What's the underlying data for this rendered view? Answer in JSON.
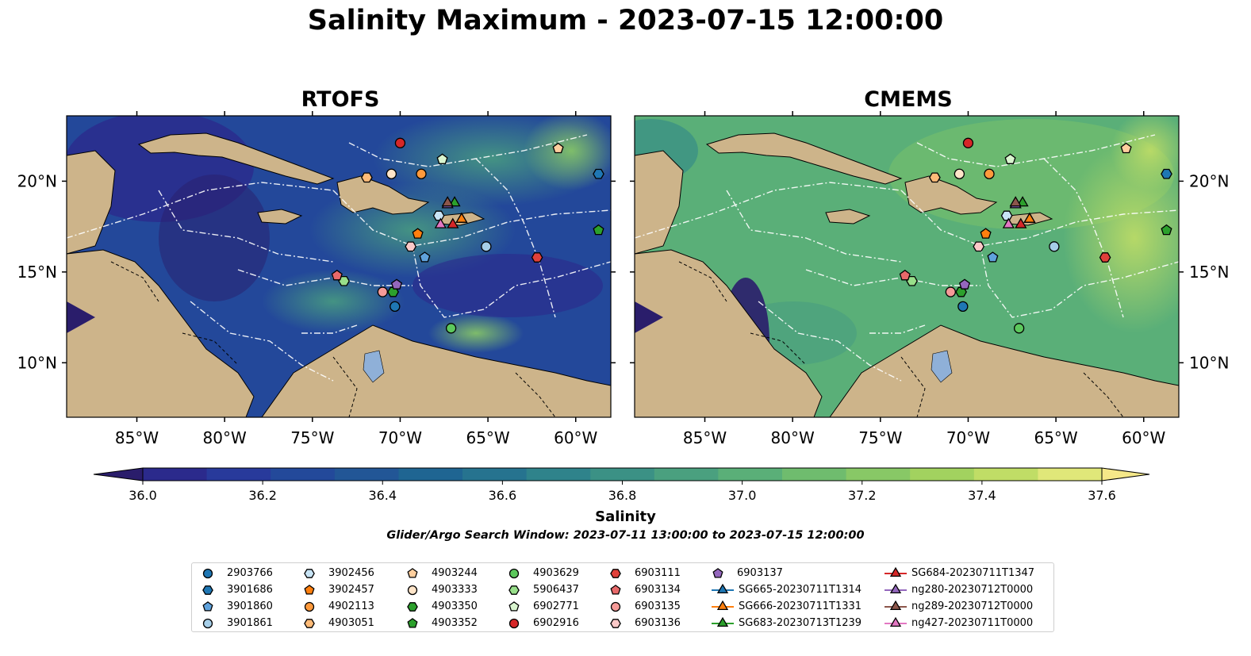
{
  "title": "Salinity Maximum - 2023-07-15 12:00:00",
  "panels": [
    {
      "id": "rtofs",
      "title": "RTOFS"
    },
    {
      "id": "cmems",
      "title": "CMEMS"
    }
  ],
  "colorbar": {
    "label": "Salinity",
    "min": 36.0,
    "max": 37.6,
    "step": 0.1,
    "ticks": [
      "36.0",
      "36.2",
      "36.4",
      "36.6",
      "36.8",
      "37.0",
      "37.2",
      "37.4",
      "37.6"
    ],
    "colors": [
      "#2a1d6b",
      "#2b2a8c",
      "#283a9b",
      "#23499a",
      "#225696",
      "#1f6592",
      "#26738f",
      "#2f838b",
      "#3b9185",
      "#4aa07f",
      "#5aaf78",
      "#6fbc6e",
      "#88c866",
      "#a2d25f",
      "#c0dd66",
      "#e0e779",
      "#f5e889"
    ],
    "extend": "both"
  },
  "search_window": "Glider/Argo Search Window: 2023-07-11 13:00:00 to 2023-07-15 12:00:00",
  "chart_data": {
    "type": "map",
    "map_extent": {
      "lon": [
        -89,
        -58
      ],
      "lat": [
        7,
        23.6
      ]
    },
    "lon_ticks": [
      {
        "value": -85,
        "label": "85°W"
      },
      {
        "value": -80,
        "label": "80°W"
      },
      {
        "value": -75,
        "label": "75°W"
      },
      {
        "value": -70,
        "label": "70°W"
      },
      {
        "value": -65,
        "label": "65°W"
      },
      {
        "value": -60,
        "label": "60°W"
      }
    ],
    "lat_ticks": [
      {
        "value": 20,
        "label": "20°N"
      },
      {
        "value": 15,
        "label": "15°N"
      },
      {
        "value": 10,
        "label": "10°N"
      }
    ],
    "land_color": "#cdb48a",
    "ocean_deep_color": "#2a1d6b",
    "observations": [
      {
        "id": "2903766",
        "marker": "circle",
        "color": "#1f77b4",
        "lon": -70.3,
        "lat": 13.1
      },
      {
        "id": "3901686",
        "marker": "hexagon",
        "color": "#1f77b4",
        "lon": -58.7,
        "lat": 20.4
      },
      {
        "id": "3901860",
        "marker": "pentagon",
        "color": "#5fa2dc",
        "lon": -68.6,
        "lat": 15.8
      },
      {
        "id": "3901861",
        "marker": "circle",
        "color": "#a6cee8",
        "lon": -65.1,
        "lat": 16.4
      },
      {
        "id": "3902456",
        "marker": "hexagon",
        "color": "#c8e4f5",
        "lon": -67.8,
        "lat": 18.1
      },
      {
        "id": "3902457",
        "marker": "pentagon",
        "color": "#ff7f0e",
        "lon": -69.0,
        "lat": 17.1
      },
      {
        "id": "4902113",
        "marker": "circle",
        "color": "#ff9a3c",
        "lon": -68.8,
        "lat": 20.4
      },
      {
        "id": "4903051",
        "marker": "hexagon",
        "color": "#ffbb78",
        "lon": -71.9,
        "lat": 20.2
      },
      {
        "id": "4903244",
        "marker": "pentagon",
        "color": "#ffcf9e",
        "lon": -61.0,
        "lat": 21.8
      },
      {
        "id": "4903333",
        "marker": "circle",
        "color": "#ffe5c9",
        "lon": -70.5,
        "lat": 20.4
      },
      {
        "id": "4903350",
        "marker": "hexagon",
        "color": "#2ca02c",
        "lon": -70.4,
        "lat": 13.9
      },
      {
        "id": "4903352",
        "marker": "pentagon",
        "color": "#2ca02c",
        "lon": -58.7,
        "lat": 17.3
      },
      {
        "id": "4903629",
        "marker": "circle",
        "color": "#5cc85c",
        "lon": -67.1,
        "lat": 11.9
      },
      {
        "id": "5906437",
        "marker": "hexagon",
        "color": "#98df8a",
        "lon": -73.2,
        "lat": 14.5
      },
      {
        "id": "6902771",
        "marker": "pentagon",
        "color": "#d9f5cf",
        "lon": -67.6,
        "lat": 21.2
      },
      {
        "id": "6902916",
        "marker": "circle",
        "color": "#d62728",
        "lon": -70.0,
        "lat": 22.1
      },
      {
        "id": "6903111",
        "marker": "hexagon",
        "color": "#e0403a",
        "lon": -62.2,
        "lat": 15.8
      },
      {
        "id": "6903134",
        "marker": "pentagon",
        "color": "#e8696a",
        "lon": -73.6,
        "lat": 14.8
      },
      {
        "id": "6903135",
        "marker": "circle",
        "color": "#f59a98",
        "lon": -71.0,
        "lat": 13.9
      },
      {
        "id": "6903136",
        "marker": "hexagon",
        "color": "#fbc9c8",
        "lon": -69.4,
        "lat": 16.4
      },
      {
        "id": "6903137",
        "marker": "pentagon",
        "color": "#9467bd",
        "lon": -70.2,
        "lat": 14.3
      },
      {
        "id": "SG665-20230711T1314",
        "marker": "triangle",
        "color": "#1f77b4",
        "lon": -66.5,
        "lat": 17.9
      },
      {
        "id": "SG666-20230711T1331",
        "marker": "triangle",
        "color": "#ff7f0e",
        "lon": -66.5,
        "lat": 17.9
      },
      {
        "id": "SG683-20230713T1239",
        "marker": "triangle",
        "color": "#2ca02c",
        "lon": -66.9,
        "lat": 18.8
      },
      {
        "id": "SG684-20230711T1347",
        "marker": "triangle",
        "color": "#d62728",
        "lon": -67.0,
        "lat": 17.6
      },
      {
        "id": "ng280-20230712T0000",
        "marker": "triangle",
        "color": "#9467bd",
        "lon": -67.3,
        "lat": 18.7
      },
      {
        "id": "ng289-20230712T0000",
        "marker": "triangle",
        "color": "#8c564b",
        "lon": -67.3,
        "lat": 18.8
      },
      {
        "id": "ng427-20230711T0000",
        "marker": "triangle",
        "color": "#e377c2",
        "lon": -67.7,
        "lat": 17.6
      }
    ]
  }
}
